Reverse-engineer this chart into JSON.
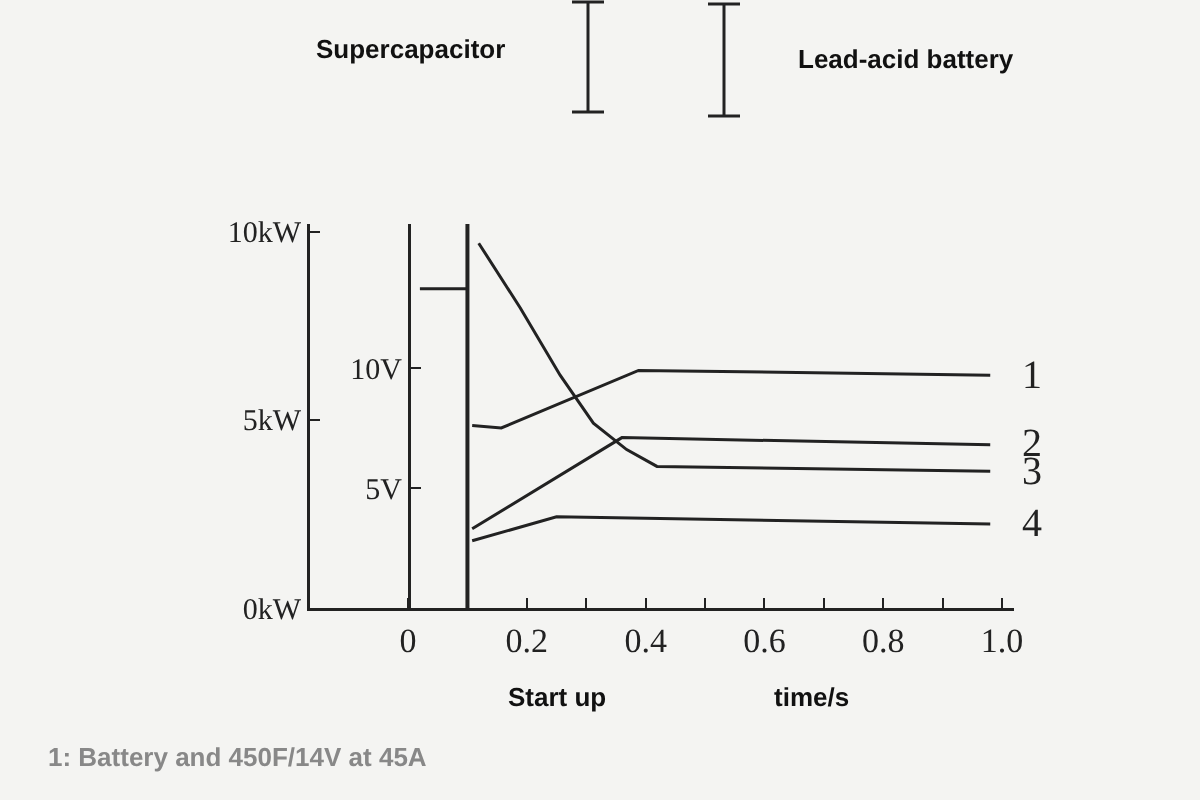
{
  "chart_data": {
    "type": "line",
    "xlabel": "time/s",
    "annotations": [
      "Supercapacitor",
      "Lead-acid battery",
      "Start up",
      "1: Battery and 450F/14V at 45A"
    ],
    "xlim": [
      -0.165,
      1.02
    ],
    "xticks": [
      0,
      {
        "value": 0.1,
        "label": null
      },
      0.2,
      {
        "value": 0.3,
        "label": null
      },
      0.4,
      {
        "value": 0.5,
        "label": null
      },
      0.6,
      {
        "value": 0.7,
        "label": null
      },
      0.8,
      {
        "value": 0.9,
        "label": null
      },
      {
        "value": 1,
        "label": "1.0"
      }
    ],
    "ylim": [
      0,
      10.2
    ],
    "yticks": [
      {
        "value": 0,
        "label": "0kW"
      },
      {
        "value": 5,
        "label": "5kW"
      },
      {
        "value": 10,
        "label": "10kW"
      }
    ],
    "y2lim": [
      0,
      16
    ],
    "y2ticks": [
      {
        "value": 5,
        "label": "5V"
      },
      {
        "value": 10,
        "label": "10V"
      }
    ],
    "ref_lines": [
      {
        "axis": "x",
        "value": 0.1,
        "color": "#222222"
      }
    ],
    "series": [
      {
        "name": "1",
        "color": "#222222",
        "axis": "y2",
        "x": [
          0.02,
          0.1,
          0.104,
          0.108,
          0.157,
          0.388,
          0.98
        ],
        "values": [
          13.3,
          13.3,
          null,
          7.6,
          7.5,
          9.9,
          9.7
        ]
      },
      {
        "name": "2",
        "color": "#222222",
        "axis": "y2",
        "x": [
          0.108,
          0.36,
          0.98
        ],
        "values": [
          3.3,
          7.1,
          6.8
        ]
      },
      {
        "name": "3",
        "color": "#222222",
        "axis": "y2",
        "x": [
          0.119,
          0.189,
          0.256,
          0.312,
          0.368,
          0.419,
          0.98
        ],
        "values": [
          15.2,
          12.5,
          9.7,
          7.7,
          6.6,
          5.9,
          5.7
        ]
      },
      {
        "name": "4",
        "color": "#222222",
        "axis": "y2",
        "x": [
          0.108,
          0.25,
          0.98
        ],
        "values": [
          2.8,
          3.8,
          3.5
        ]
      }
    ],
    "grid": false,
    "legend": false,
    "marker": "none",
    "line_style": "solid"
  }
}
